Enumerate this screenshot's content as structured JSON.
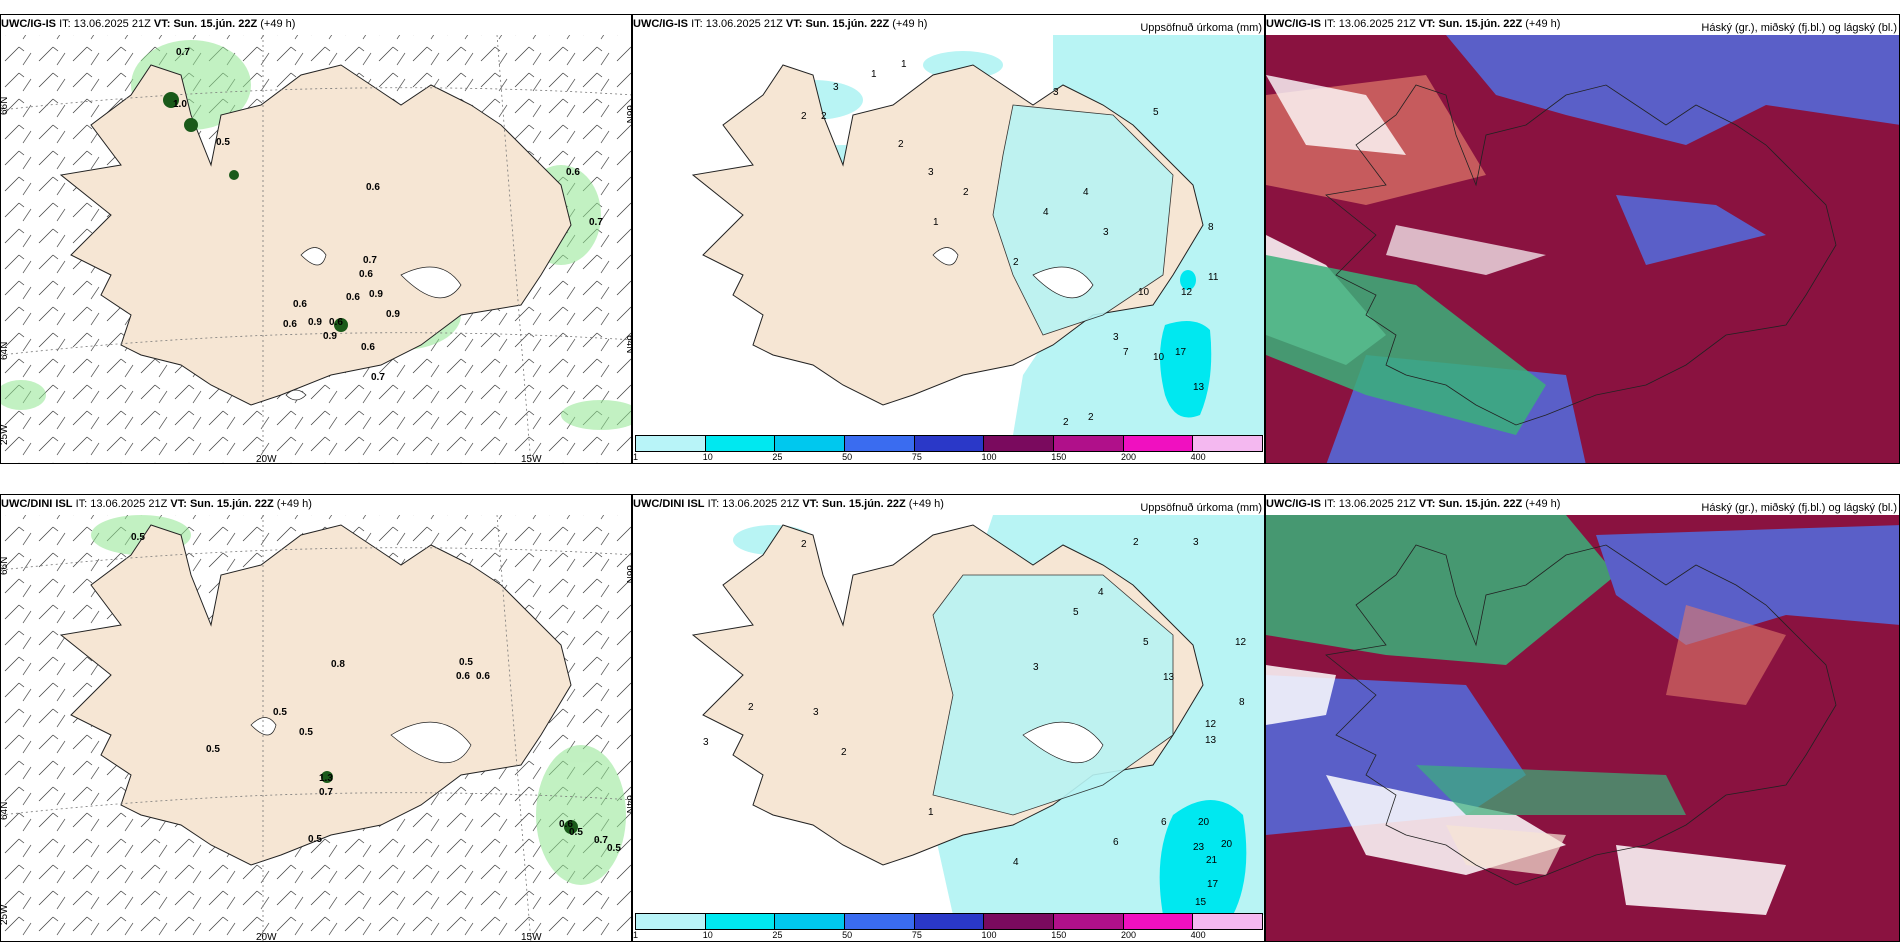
{
  "colors": {
    "land": "#f6e6d4",
    "rain_light": "#b8f4f4",
    "rain_med": "#00e8f0",
    "green": "#7ee07e",
    "cloud_high": "#3ab07a",
    "cloud_mid": "#5a5fc8",
    "cloud_low": "#8a1240"
  },
  "titles": {
    "ig": "UWC/IG-IS",
    "dini": "UWC/DINI ISL",
    "it_label": "IT:",
    "it": "13.06.2025 21Z",
    "vt_label": "VT:",
    "vt": "Sun. 15.jún. 22Z",
    "lead": "(+49 h)",
    "precip": "Uppsöfnuð úrkoma (mm)",
    "cloud": "Háský (gr.), miðský (fj.bl.) og lágský (bl.)"
  },
  "axis": {
    "lat66": "66N",
    "lat64": "64N",
    "lat66r": "66N",
    "lat64r": "64N",
    "lon25": "25W",
    "lon20": "20W",
    "lon15": "15W"
  },
  "colorbar": {
    "ticks": [
      "1",
      "10",
      "25",
      "50",
      "75",
      "100",
      "150",
      "200",
      "400"
    ],
    "colors": [
      "#b8f4f8",
      "#00e8f0",
      "#00c8ee",
      "#3a6cf0",
      "#2a38c8",
      "#7a0a5e",
      "#b0108a",
      "#f010c0",
      "#f4b8f0"
    ]
  },
  "gusts_ig": [
    "0.7",
    "1.0",
    "0.5",
    "0.6",
    "0.6",
    "0.7",
    "0.7",
    "0.6",
    "0.6",
    "0.6",
    "0.9",
    "0.6",
    "0.9",
    "0.6",
    "0.9",
    "0.9",
    "0.6",
    "0.7"
  ],
  "gusts_dini": [
    "0.5",
    "0.8",
    "0.5",
    "0.6",
    "0.6",
    "0.5",
    "0.5",
    "0.5",
    "1.3",
    "0.7",
    "0.5",
    "0.6",
    "0.5",
    "0.7",
    "0.5"
  ],
  "precip_ig": [
    "1",
    "1",
    "3",
    "2",
    "2",
    "2",
    "3",
    "3",
    "2",
    "4",
    "4",
    "1",
    "2",
    "3",
    "10",
    "8",
    "12",
    "11",
    "17",
    "13",
    "10",
    "7",
    "5",
    "2",
    "2",
    "3"
  ],
  "precip_dini": [
    "2",
    "2",
    "3",
    "3",
    "5",
    "5",
    "4",
    "3",
    "13",
    "12",
    "13",
    "12",
    "20",
    "23",
    "20",
    "21",
    "17",
    "15",
    "6",
    "4",
    "2",
    "3",
    "2",
    "1",
    "6",
    "8"
  ]
}
